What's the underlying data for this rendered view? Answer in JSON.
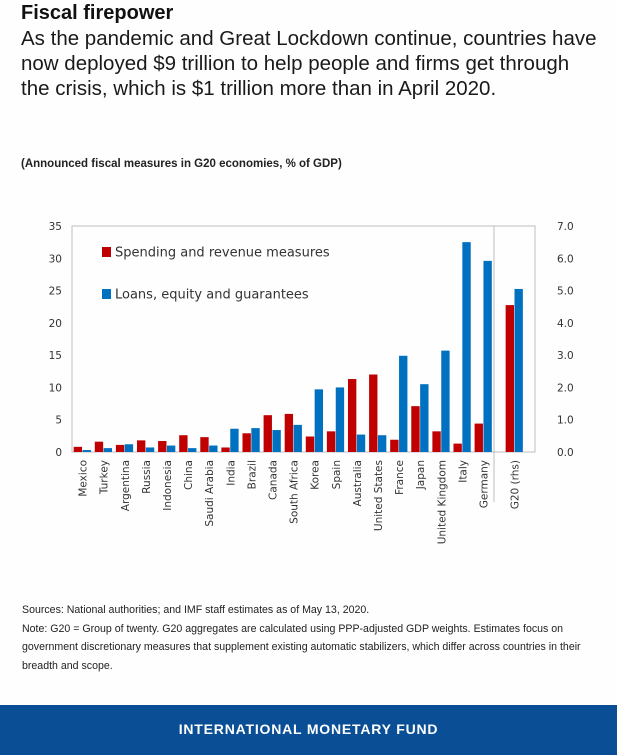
{
  "headline": "Fiscal firepower",
  "subtitle": "As the pandemic and Great Lockdown continue, countries have now deployed $9 trillion to help people and firms get through the crisis, which is $1 trillion more than in April 2020.",
  "chart_caption": "(Announced fiscal measures in G20 economies, % of GDP)",
  "notes": {
    "sources": "Sources: National authorities; and IMF staff estimates as of May 13, 2020.",
    "note": "Note: G20 = Group of twenty. G20 aggregates are calculated using PPP-adjusted GDP weights. Estimates focus on government discretionary measures that supplement existing automatic stabilizers, which differ across countries in their breadth and scope."
  },
  "footer": {
    "label": "INTERNATIONAL MONETARY FUND",
    "color": "#0a4f96"
  },
  "chart_data": {
    "type": "bar",
    "title": "(Announced fiscal measures in G20 economies, % of GDP)",
    "xlabel": "",
    "ylabel": "",
    "ylim": [
      0,
      35
    ],
    "y2lim": [
      0,
      7
    ],
    "yticks": [
      "0",
      "5",
      "10",
      "15",
      "20",
      "25",
      "30",
      "35"
    ],
    "y2ticks": [
      "0.0",
      "1.0",
      "2.0",
      "3.0",
      "4.0",
      "5.0",
      "6.0",
      "7.0"
    ],
    "grid": false,
    "legend": "top-left",
    "categories": [
      "Mexico",
      "Turkey",
      "Argentina",
      "Russia",
      "Indonesia",
      "China",
      "Saudi Arabia",
      "India",
      "Brazil",
      "Canada",
      "South Africa",
      "Korea",
      "Spain",
      "Australia",
      "United States",
      "France",
      "Japan",
      "United Kingdom",
      "Italy",
      "Germany"
    ],
    "series": [
      {
        "name": "Spending and revenue measures",
        "color": "#c00000",
        "values": [
          0.8,
          1.6,
          1.1,
          1.8,
          1.7,
          2.6,
          2.3,
          0.7,
          2.9,
          5.7,
          5.9,
          2.4,
          3.2,
          11.3,
          12.0,
          1.9,
          7.1,
          3.2,
          1.3,
          4.4
        ]
      },
      {
        "name": "Loans, equity and guarantees",
        "color": "#0070c0",
        "values": [
          0.3,
          0.6,
          1.2,
          0.7,
          1.0,
          0.6,
          1.0,
          3.6,
          3.7,
          3.4,
          4.2,
          9.7,
          10.0,
          2.7,
          2.6,
          14.9,
          10.5,
          15.7,
          32.5,
          29.6
        ]
      }
    ],
    "aggregate": {
      "category": "G20 (rhs)",
      "axis": "right",
      "values": [
        4.55,
        5.05
      ]
    }
  }
}
